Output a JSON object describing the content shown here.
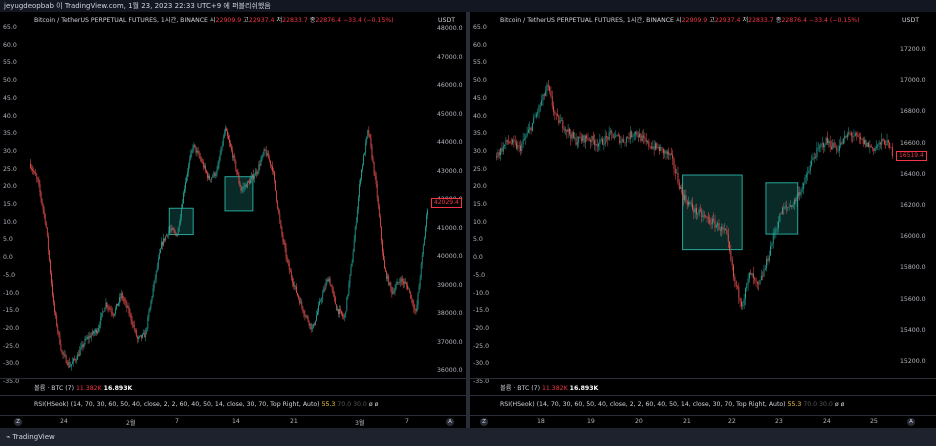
{
  "header": {
    "caption": "jeyugdeopbab 이 TradingView.com, 1월 23, 2023 22:33 UTC+9 에 퍼블리쉬했음"
  },
  "footer": {
    "brand": "TradingView"
  },
  "colors": {
    "up": "#26a69a",
    "down": "#ef5350",
    "box_border": "#26a69a",
    "box_fill": "rgba(38,166,154,0.25)",
    "price_tag": "#f23645"
  },
  "left": {
    "legend": {
      "symbol": "Bitcoin / TetherUS PERPETUAL FUTURES, 1시간, BINANCE",
      "o_label": "시",
      "o": "22909.9",
      "h_label": "고",
      "h": "22937.4",
      "l_label": "저",
      "l": "22833.7",
      "c_label": "종",
      "c": "22876.4",
      "chg": "−33.4 (−0.15%)"
    },
    "rsi_axis": [
      "65.0",
      "60.0",
      "55.0",
      "50.0",
      "45.0",
      "40.0",
      "35.0",
      "30.0",
      "25.0",
      "20.0",
      "15.0",
      "10.0",
      "5.0",
      "0.0",
      "-5.0",
      "-10.0",
      "-15.0",
      "-20.0",
      "-25.0",
      "-30.0",
      "-35.0"
    ],
    "price_axis": [
      "48000.0",
      "47000.0",
      "46000.0",
      "45000.0",
      "44000.0",
      "43000.0",
      "42000.0",
      "41000.0",
      "40000.0",
      "39000.0",
      "38000.0",
      "37000.0",
      "36000.0"
    ],
    "unit": "USDT",
    "price_tag": "42029.4",
    "volume": {
      "label": "볼륨 · BTC (7)",
      "v1": "11.382K",
      "v2": "16.893K"
    },
    "rsi": {
      "label": "RSI(HSeok) (14, 70, 30, 60, 50, 40, close, 2, 2, 60, 40, 50, 14, close, 30, 70, Top Right, Auto)",
      "v1": "55.3",
      "v2": "70.0",
      "v3": "30.0",
      "v4": "ø",
      "v5": "ø"
    },
    "time_axis": [
      "24",
      "2월",
      "7",
      "14",
      "21",
      "3월",
      "7"
    ],
    "corner_left": "Z",
    "corner_right": "A"
  },
  "right": {
    "legend": {
      "symbol": "Bitcoin / TetherUS PERPETUAL FUTURES, 1시간, BINANCE",
      "o_label": "시",
      "o": "22909.9",
      "h_label": "고",
      "h": "22937.4",
      "l_label": "저",
      "l": "22833.7",
      "c_label": "종",
      "c": "22876.4",
      "chg": "−33.4 (−0.15%)"
    },
    "rsi_axis": [
      "65.0",
      "60.0",
      "55.0",
      "50.0",
      "45.0",
      "40.0",
      "35.0",
      "30.0",
      "25.0",
      "20.0",
      "15.0",
      "10.0",
      "5.0",
      "0.0",
      "-5.0",
      "-10.0",
      "-15.0",
      "-20.0",
      "-25.0",
      "-30.0",
      "-35.0"
    ],
    "price_axis": [
      "17200.0",
      "17000.0",
      "16800.0",
      "16600.0",
      "16400.0",
      "16200.0",
      "16000.0",
      "15800.0",
      "15600.0",
      "15400.0",
      "15200.0"
    ],
    "unit": "USDT",
    "price_tag": "16519.4",
    "volume": {
      "label": "볼륨 · BTC (7)",
      "v1": "11.382K",
      "v2": "16.893K"
    },
    "rsi": {
      "label": "RSI(HSeok) (14, 70, 30, 60, 50, 40, close, 2, 2, 60, 40, 50, 14, close, 30, 70, Top Right, Auto)",
      "v1": "55.3",
      "v2": "70.0",
      "v3": "30.0",
      "v4": "ø",
      "v5": "ø"
    },
    "time_axis": [
      "18",
      "19",
      "20",
      "21",
      "22",
      "23",
      "24",
      "25"
    ],
    "corner_left": "Z",
    "corner_right": "A"
  },
  "chart_data": [
    {
      "type": "candlestick",
      "symbol": "Bitcoin / TetherUS PERPETUAL FUTURES, 1시간, BINANCE",
      "y_range": [
        35500,
        48500
      ],
      "close_path": [
        [
          0,
          43500
        ],
        [
          0.02,
          42800
        ],
        [
          0.04,
          41200
        ],
        [
          0.06,
          38000
        ],
        [
          0.08,
          36300
        ],
        [
          0.1,
          35800
        ],
        [
          0.12,
          36200
        ],
        [
          0.14,
          36800
        ],
        [
          0.17,
          37200
        ],
        [
          0.19,
          38200
        ],
        [
          0.21,
          37800
        ],
        [
          0.23,
          38500
        ],
        [
          0.25,
          37800
        ],
        [
          0.27,
          36800
        ],
        [
          0.29,
          37000
        ],
        [
          0.31,
          38800
        ],
        [
          0.33,
          40400
        ],
        [
          0.35,
          41000
        ],
        [
          0.37,
          40800
        ],
        [
          0.39,
          42800
        ],
        [
          0.41,
          44200
        ],
        [
          0.43,
          43600
        ],
        [
          0.45,
          42900
        ],
        [
          0.47,
          43200
        ],
        [
          0.49,
          44800
        ],
        [
          0.51,
          43800
        ],
        [
          0.53,
          42500
        ],
        [
          0.55,
          42800
        ],
        [
          0.57,
          43200
        ],
        [
          0.59,
          44000
        ],
        [
          0.61,
          43300
        ],
        [
          0.63,
          41000
        ],
        [
          0.65,
          39500
        ],
        [
          0.67,
          38600
        ],
        [
          0.69,
          37800
        ],
        [
          0.71,
          37200
        ],
        [
          0.73,
          38300
        ],
        [
          0.75,
          39200
        ],
        [
          0.77,
          38000
        ],
        [
          0.79,
          37600
        ],
        [
          0.81,
          39900
        ],
        [
          0.83,
          43000
        ],
        [
          0.85,
          44800
        ],
        [
          0.87,
          42600
        ],
        [
          0.89,
          39500
        ],
        [
          0.91,
          38600
        ],
        [
          0.93,
          39100
        ],
        [
          0.95,
          38800
        ],
        [
          0.97,
          37800
        ],
        [
          0.99,
          40600
        ],
        [
          1.0,
          42029
        ]
      ],
      "boxes": [
        {
          "t0": 0.35,
          "t1": 0.41,
          "p0": 40800,
          "p1": 41800
        },
        {
          "t0": 0.49,
          "t1": 0.56,
          "p0": 41700,
          "p1": 43000
        }
      ]
    },
    {
      "type": "candlestick",
      "symbol": "Bitcoin / TetherUS PERPETUAL FUTURES, 1시간, BINANCE",
      "y_range": [
        15100,
        17300
      ],
      "close_path": [
        [
          0,
          16500
        ],
        [
          0.03,
          16600
        ],
        [
          0.06,
          16550
        ],
        [
          0.09,
          16700
        ],
        [
          0.11,
          16820
        ],
        [
          0.13,
          16950
        ],
        [
          0.15,
          16750
        ],
        [
          0.17,
          16700
        ],
        [
          0.2,
          16600
        ],
        [
          0.23,
          16620
        ],
        [
          0.26,
          16580
        ],
        [
          0.29,
          16640
        ],
        [
          0.32,
          16600
        ],
        [
          0.35,
          16660
        ],
        [
          0.38,
          16580
        ],
        [
          0.41,
          16550
        ],
        [
          0.44,
          16500
        ],
        [
          0.47,
          16250
        ],
        [
          0.5,
          16150
        ],
        [
          0.53,
          16100
        ],
        [
          0.56,
          16050
        ],
        [
          0.58,
          16000
        ],
        [
          0.6,
          15700
        ],
        [
          0.62,
          15550
        ],
        [
          0.64,
          15750
        ],
        [
          0.66,
          15650
        ],
        [
          0.68,
          15800
        ],
        [
          0.7,
          16000
        ],
        [
          0.72,
          16150
        ],
        [
          0.75,
          16200
        ],
        [
          0.78,
          16350
        ],
        [
          0.8,
          16500
        ],
        [
          0.83,
          16600
        ],
        [
          0.86,
          16550
        ],
        [
          0.89,
          16650
        ],
        [
          0.92,
          16600
        ],
        [
          0.95,
          16550
        ],
        [
          0.98,
          16600
        ],
        [
          1.0,
          16519
        ]
      ],
      "boxes": [
        {
          "t0": 0.47,
          "t1": 0.62,
          "p0": 15900,
          "p1": 16380
        },
        {
          "t0": 0.68,
          "t1": 0.76,
          "p0": 16000,
          "p1": 16330
        }
      ]
    }
  ]
}
